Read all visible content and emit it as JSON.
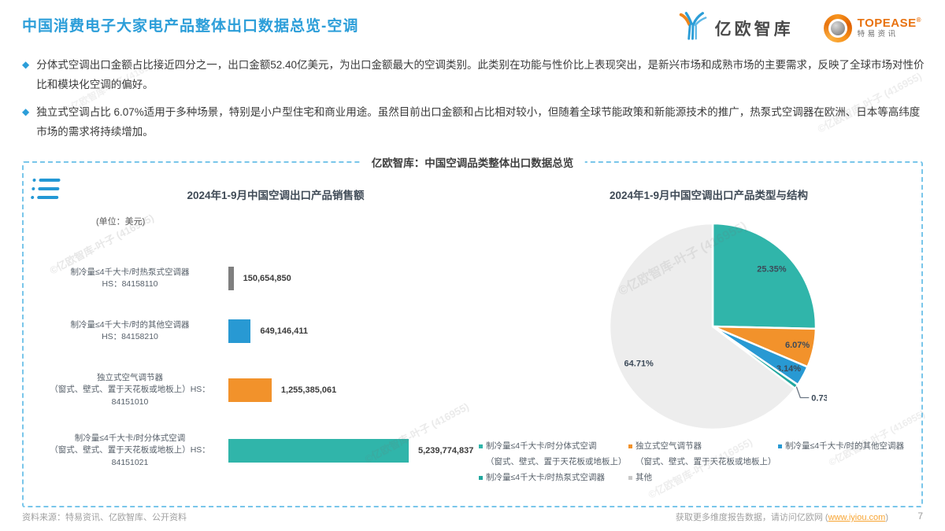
{
  "page": {
    "title": "中国消费电子大家电产品整体出口数据总览-空调",
    "page_number": "7"
  },
  "logos": {
    "yiou_text": "亿欧智库",
    "topease_text": "TOPEASE",
    "topease_reg": "®",
    "topease_sub": "特易资讯"
  },
  "bullets": [
    {
      "text": "分体式空调出口金额占比接近四分之一，出口金额52.40亿美元，为出口金额最大的空调类别。此类别在功能与性价比上表现突出，是新兴市场和成熟市场的主要需求，反映了全球市场对性价比和模块化空调的偏好。"
    },
    {
      "text": "独立式空调占比 6.07%适用于多种场景，特别是小户型住宅和商业用途。虽然目前出口金额和占比相对较小，但随着全球节能政策和新能源技术的推广，热泵式空调器在欧洲、日本等高纬度市场的需求将持续增加。"
    }
  ],
  "board": {
    "title": "亿欧智库：中国空调品类整体出口数据总览"
  },
  "chart_data": [
    {
      "type": "bar",
      "title": "2024年1-9月中国空调出口产品销售额",
      "unit_label": "(单位：美元)",
      "orientation": "horizontal",
      "bars": [
        {
          "label_line1": "制冷量≤4千大卡/时热泵式空调器",
          "label_line2": "HS：84158110",
          "value": 150654850,
          "value_label": "150,654,850",
          "color": "#7F7F7F"
        },
        {
          "label_line1": "制冷量≤4千大卡/时的其他空调器",
          "label_line2": "HS：84158210",
          "value": 649146411,
          "value_label": "649,146,411",
          "color": "#2899D3"
        },
        {
          "label_line1": "独立式空气调节器",
          "label_line2": "（窗式、壁式、置于天花板或地板上）HS：84151010",
          "value": 1255385061,
          "value_label": "1,255,385,061",
          "color": "#F2922B"
        },
        {
          "label_line1": "制冷量≤4千大卡/时分体式空调",
          "label_line2": "（窗式、壁式、置于天花板或地板上）HS：84151021",
          "value": 5239774837,
          "value_label": "5,239,774,837",
          "color": "#30B5AA"
        }
      ]
    },
    {
      "type": "pie",
      "title": "2024年1-9月中国空调出口产品类型与结构",
      "slices": [
        {
          "label": "制冷量≤4千大卡/时分体式空调（窗式、壁式、置于天花板或地板上）",
          "pct": 25.35,
          "pct_label": "25.35%",
          "color": "#30B5AA"
        },
        {
          "label": "独立式空气调节器（窗式、壁式、置于天花板或地板上）",
          "pct": 6.07,
          "pct_label": "6.07%",
          "color": "#F2922B"
        },
        {
          "label": "制冷量≤4千大卡/时的其他空调器",
          "pct": 3.14,
          "pct_label": "3.14%",
          "color": "#2899D3"
        },
        {
          "label": "制冷量≤4千大卡/时热泵式空调器",
          "pct": 0.73,
          "pct_label": "0.73%",
          "color": "#21A79E"
        },
        {
          "label": "其他",
          "pct": 64.71,
          "pct_label": "64.71%",
          "color": "#EDEDED"
        }
      ],
      "legend_columns": [
        [
          {
            "color": "#30B5AA",
            "lines": [
              "制冷量≤4千大卡/时分体式空调",
              "（窗式、壁式、置于天花板或地板上）"
            ]
          },
          {
            "color": "#21A79E",
            "lines": [
              "制冷量≤4千大卡/时热泵式空调器"
            ]
          }
        ],
        [
          {
            "color": "#F2922B",
            "lines": [
              "独立式空气调节器",
              "（窗式、壁式、置于天花板或地板上）"
            ]
          },
          {
            "color": "#C9C9C9",
            "lines": [
              "其他"
            ]
          }
        ],
        [
          {
            "color": "#2899D3",
            "lines": [
              "制冷量≤4千大卡/时的其他空调器"
            ]
          }
        ]
      ]
    }
  ],
  "watermark": "©亿欧智库-叶子 (416955)",
  "footer": {
    "source": "资料来源：特易资讯、亿欧智库、公开资料",
    "cta_prefix": "获取更多维度报告数据，请访问亿欧网 (",
    "link_text": "www.iyiou.com",
    "cta_suffix": ")"
  }
}
